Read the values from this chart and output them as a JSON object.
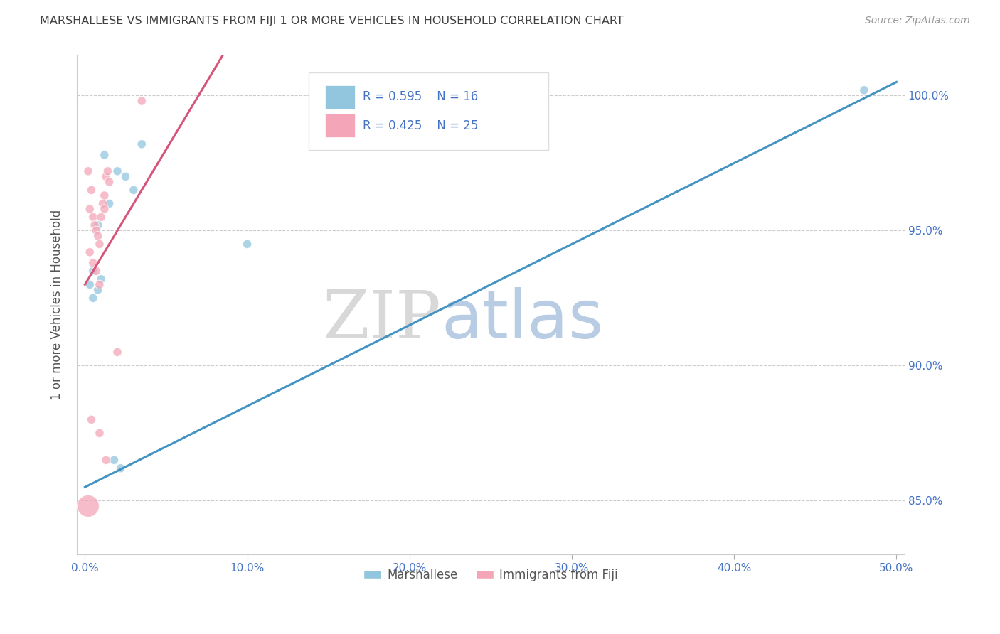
{
  "title": "MARSHALLESE VS IMMIGRANTS FROM FIJI 1 OR MORE VEHICLES IN HOUSEHOLD CORRELATION CHART",
  "source": "Source: ZipAtlas.com",
  "ylabel": "1 or more Vehicles in Household",
  "watermark_zip": "ZIP",
  "watermark_atlas": "atlas",
  "xlim": [
    -0.5,
    50.5
  ],
  "ylim": [
    83.0,
    101.5
  ],
  "xticks": [
    0.0,
    10.0,
    20.0,
    30.0,
    40.0,
    50.0
  ],
  "yticks": [
    85.0,
    90.0,
    95.0,
    100.0
  ],
  "xticklabels": [
    "0.0%",
    "10.0%",
    "20.0%",
    "30.0%",
    "40.0%",
    "50.0%"
  ],
  "yticklabels": [
    "85.0%",
    "90.0%",
    "95.0%",
    "100.0%"
  ],
  "blue_color": "#92c5de",
  "pink_color": "#f4a6b8",
  "blue_line_color": "#4393c3",
  "pink_line_color": "#d6537a",
  "legend_blue_label": "Marshallese",
  "legend_pink_label": "Immigrants from Fiji",
  "blue_scatter_x": [
    0.5,
    1.2,
    2.0,
    3.0,
    3.5,
    0.8,
    1.5,
    2.5,
    0.3,
    1.0,
    1.8,
    2.2,
    0.5,
    0.8,
    10.0,
    48.0
  ],
  "blue_scatter_y": [
    93.5,
    97.8,
    97.2,
    96.5,
    98.2,
    95.2,
    96.0,
    97.0,
    93.0,
    93.2,
    86.5,
    86.2,
    92.5,
    92.8,
    94.5,
    100.2
  ],
  "blue_scatter_size": [
    80,
    80,
    80,
    80,
    80,
    80,
    80,
    80,
    80,
    80,
    80,
    80,
    80,
    80,
    80,
    80
  ],
  "pink_scatter_x": [
    0.2,
    0.3,
    0.4,
    0.5,
    0.6,
    0.7,
    0.8,
    0.9,
    1.0,
    1.1,
    1.2,
    1.3,
    1.4,
    1.5,
    0.3,
    0.5,
    0.7,
    0.9,
    1.2,
    2.0,
    3.5,
    0.4,
    0.9,
    1.3,
    0.2
  ],
  "pink_scatter_y": [
    97.2,
    95.8,
    96.5,
    95.5,
    95.2,
    95.0,
    94.8,
    94.5,
    95.5,
    96.0,
    96.3,
    97.0,
    97.2,
    96.8,
    94.2,
    93.8,
    93.5,
    93.0,
    95.8,
    90.5,
    99.8,
    88.0,
    87.5,
    86.5,
    84.8
  ],
  "pink_scatter_size": [
    80,
    80,
    80,
    80,
    80,
    80,
    80,
    80,
    80,
    80,
    80,
    80,
    80,
    80,
    80,
    80,
    80,
    80,
    80,
    80,
    80,
    80,
    80,
    80,
    500
  ],
  "blue_line_x": [
    0.0,
    50.0
  ],
  "blue_line_y": [
    85.5,
    100.5
  ],
  "pink_line_x": [
    0.0,
    8.5
  ],
  "pink_line_y": [
    93.0,
    101.5
  ],
  "bg_color": "#ffffff",
  "grid_color": "#cccccc",
  "axis_color": "#4472c4",
  "title_color": "#404040"
}
